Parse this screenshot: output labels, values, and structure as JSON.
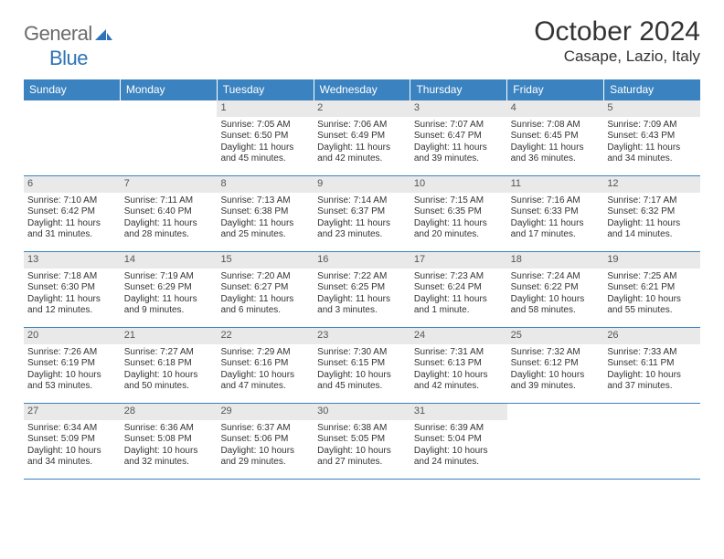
{
  "brand": {
    "general": "General",
    "blue": "Blue"
  },
  "title": "October 2024",
  "location": "Casape, Lazio, Italy",
  "colors": {
    "header_bg": "#3b83c0",
    "header_text": "#ffffff",
    "daynum_bg": "#e9e9e9",
    "daynum_text": "#555555",
    "body_text": "#333333",
    "logo_gray": "#6b6b6b",
    "logo_blue": "#2d73b8",
    "rule": "#3b83c0"
  },
  "day_names": [
    "Sunday",
    "Monday",
    "Tuesday",
    "Wednesday",
    "Thursday",
    "Friday",
    "Saturday"
  ],
  "weeks": [
    [
      null,
      null,
      {
        "n": "1",
        "sr": "Sunrise: 7:05 AM",
        "ss": "Sunset: 6:50 PM",
        "dl1": "Daylight: 11 hours",
        "dl2": "and 45 minutes."
      },
      {
        "n": "2",
        "sr": "Sunrise: 7:06 AM",
        "ss": "Sunset: 6:49 PM",
        "dl1": "Daylight: 11 hours",
        "dl2": "and 42 minutes."
      },
      {
        "n": "3",
        "sr": "Sunrise: 7:07 AM",
        "ss": "Sunset: 6:47 PM",
        "dl1": "Daylight: 11 hours",
        "dl2": "and 39 minutes."
      },
      {
        "n": "4",
        "sr": "Sunrise: 7:08 AM",
        "ss": "Sunset: 6:45 PM",
        "dl1": "Daylight: 11 hours",
        "dl2": "and 36 minutes."
      },
      {
        "n": "5",
        "sr": "Sunrise: 7:09 AM",
        "ss": "Sunset: 6:43 PM",
        "dl1": "Daylight: 11 hours",
        "dl2": "and 34 minutes."
      }
    ],
    [
      {
        "n": "6",
        "sr": "Sunrise: 7:10 AM",
        "ss": "Sunset: 6:42 PM",
        "dl1": "Daylight: 11 hours",
        "dl2": "and 31 minutes."
      },
      {
        "n": "7",
        "sr": "Sunrise: 7:11 AM",
        "ss": "Sunset: 6:40 PM",
        "dl1": "Daylight: 11 hours",
        "dl2": "and 28 minutes."
      },
      {
        "n": "8",
        "sr": "Sunrise: 7:13 AM",
        "ss": "Sunset: 6:38 PM",
        "dl1": "Daylight: 11 hours",
        "dl2": "and 25 minutes."
      },
      {
        "n": "9",
        "sr": "Sunrise: 7:14 AM",
        "ss": "Sunset: 6:37 PM",
        "dl1": "Daylight: 11 hours",
        "dl2": "and 23 minutes."
      },
      {
        "n": "10",
        "sr": "Sunrise: 7:15 AM",
        "ss": "Sunset: 6:35 PM",
        "dl1": "Daylight: 11 hours",
        "dl2": "and 20 minutes."
      },
      {
        "n": "11",
        "sr": "Sunrise: 7:16 AM",
        "ss": "Sunset: 6:33 PM",
        "dl1": "Daylight: 11 hours",
        "dl2": "and 17 minutes."
      },
      {
        "n": "12",
        "sr": "Sunrise: 7:17 AM",
        "ss": "Sunset: 6:32 PM",
        "dl1": "Daylight: 11 hours",
        "dl2": "and 14 minutes."
      }
    ],
    [
      {
        "n": "13",
        "sr": "Sunrise: 7:18 AM",
        "ss": "Sunset: 6:30 PM",
        "dl1": "Daylight: 11 hours",
        "dl2": "and 12 minutes."
      },
      {
        "n": "14",
        "sr": "Sunrise: 7:19 AM",
        "ss": "Sunset: 6:29 PM",
        "dl1": "Daylight: 11 hours",
        "dl2": "and 9 minutes."
      },
      {
        "n": "15",
        "sr": "Sunrise: 7:20 AM",
        "ss": "Sunset: 6:27 PM",
        "dl1": "Daylight: 11 hours",
        "dl2": "and 6 minutes."
      },
      {
        "n": "16",
        "sr": "Sunrise: 7:22 AM",
        "ss": "Sunset: 6:25 PM",
        "dl1": "Daylight: 11 hours",
        "dl2": "and 3 minutes."
      },
      {
        "n": "17",
        "sr": "Sunrise: 7:23 AM",
        "ss": "Sunset: 6:24 PM",
        "dl1": "Daylight: 11 hours",
        "dl2": "and 1 minute."
      },
      {
        "n": "18",
        "sr": "Sunrise: 7:24 AM",
        "ss": "Sunset: 6:22 PM",
        "dl1": "Daylight: 10 hours",
        "dl2": "and 58 minutes."
      },
      {
        "n": "19",
        "sr": "Sunrise: 7:25 AM",
        "ss": "Sunset: 6:21 PM",
        "dl1": "Daylight: 10 hours",
        "dl2": "and 55 minutes."
      }
    ],
    [
      {
        "n": "20",
        "sr": "Sunrise: 7:26 AM",
        "ss": "Sunset: 6:19 PM",
        "dl1": "Daylight: 10 hours",
        "dl2": "and 53 minutes."
      },
      {
        "n": "21",
        "sr": "Sunrise: 7:27 AM",
        "ss": "Sunset: 6:18 PM",
        "dl1": "Daylight: 10 hours",
        "dl2": "and 50 minutes."
      },
      {
        "n": "22",
        "sr": "Sunrise: 7:29 AM",
        "ss": "Sunset: 6:16 PM",
        "dl1": "Daylight: 10 hours",
        "dl2": "and 47 minutes."
      },
      {
        "n": "23",
        "sr": "Sunrise: 7:30 AM",
        "ss": "Sunset: 6:15 PM",
        "dl1": "Daylight: 10 hours",
        "dl2": "and 45 minutes."
      },
      {
        "n": "24",
        "sr": "Sunrise: 7:31 AM",
        "ss": "Sunset: 6:13 PM",
        "dl1": "Daylight: 10 hours",
        "dl2": "and 42 minutes."
      },
      {
        "n": "25",
        "sr": "Sunrise: 7:32 AM",
        "ss": "Sunset: 6:12 PM",
        "dl1": "Daylight: 10 hours",
        "dl2": "and 39 minutes."
      },
      {
        "n": "26",
        "sr": "Sunrise: 7:33 AM",
        "ss": "Sunset: 6:11 PM",
        "dl1": "Daylight: 10 hours",
        "dl2": "and 37 minutes."
      }
    ],
    [
      {
        "n": "27",
        "sr": "Sunrise: 6:34 AM",
        "ss": "Sunset: 5:09 PM",
        "dl1": "Daylight: 10 hours",
        "dl2": "and 34 minutes."
      },
      {
        "n": "28",
        "sr": "Sunrise: 6:36 AM",
        "ss": "Sunset: 5:08 PM",
        "dl1": "Daylight: 10 hours",
        "dl2": "and 32 minutes."
      },
      {
        "n": "29",
        "sr": "Sunrise: 6:37 AM",
        "ss": "Sunset: 5:06 PM",
        "dl1": "Daylight: 10 hours",
        "dl2": "and 29 minutes."
      },
      {
        "n": "30",
        "sr": "Sunrise: 6:38 AM",
        "ss": "Sunset: 5:05 PM",
        "dl1": "Daylight: 10 hours",
        "dl2": "and 27 minutes."
      },
      {
        "n": "31",
        "sr": "Sunrise: 6:39 AM",
        "ss": "Sunset: 5:04 PM",
        "dl1": "Daylight: 10 hours",
        "dl2": "and 24 minutes."
      },
      null,
      null
    ]
  ]
}
